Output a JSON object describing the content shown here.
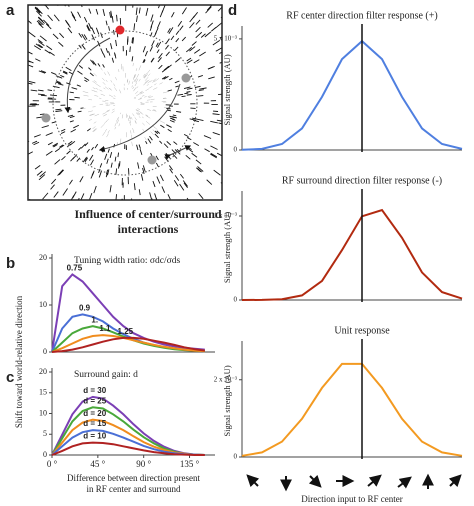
{
  "figure": {
    "panel_a_label": "a",
    "panel_d_label": "d",
    "heading_line1": "Influence of center/surround",
    "heading_line2": "interactions",
    "shared_y_label": "Shift toward world-relative direction"
  },
  "chart_data": [
    {
      "type": "line",
      "panel_label": "b",
      "title": "Tuning width ratio: σdc/σds",
      "x": [
        0,
        10,
        20,
        30,
        40,
        50,
        60,
        70,
        80,
        90,
        100,
        110,
        120,
        130,
        140,
        150
      ],
      "xlim": [
        0,
        160
      ],
      "ylim": [
        0,
        20
      ],
      "yticks": [
        0,
        10,
        20
      ],
      "series": [
        {
          "name": "0.75",
          "color": "#7b3fb5",
          "values": [
            0,
            14,
            16.5,
            15,
            12.5,
            10,
            7.5,
            5.5,
            4,
            3,
            2.2,
            1.6,
            1.2,
            0.9,
            0.7,
            0.5
          ]
        },
        {
          "name": "0.9",
          "color": "#4a6fd6",
          "values": [
            0,
            5,
            7.5,
            8,
            7.5,
            6.5,
            5,
            3.8,
            2.8,
            2,
            1.4,
            1,
            0.7,
            0.5,
            0.4,
            0.3
          ]
        },
        {
          "name": "1.",
          "color": "#49a83a",
          "values": [
            0,
            2,
            4,
            5,
            5.5,
            5,
            4.2,
            3.3,
            2.5,
            1.8,
            1.3,
            0.9,
            0.6,
            0.4,
            0.3,
            0.2
          ]
        },
        {
          "name": "1.1",
          "color": "#f08c1e",
          "values": [
            0,
            0.8,
            1.8,
            2.8,
            3.4,
            3.6,
            3.4,
            3,
            2.5,
            2,
            1.5,
            1.1,
            0.8,
            0.5,
            0.3,
            0.2
          ]
        },
        {
          "name": "1.25",
          "color": "#b02222",
          "values": [
            0,
            0.2,
            0.5,
            1,
            1.6,
            2.2,
            2.7,
            3,
            3,
            2.8,
            2.4,
            2,
            1.5,
            1,
            0.6,
            0.3
          ]
        }
      ]
    },
    {
      "type": "line",
      "panel_label": "c",
      "title": "Surround gain: d",
      "x_label_line1": "Difference between direction present",
      "x_label_line2": "in RF center and surround",
      "x": [
        0,
        10,
        20,
        30,
        40,
        50,
        60,
        70,
        80,
        90,
        100,
        110,
        120,
        130,
        140,
        150
      ],
      "xlim": [
        0,
        160
      ],
      "ylim": [
        0,
        20
      ],
      "yticks": [
        0,
        5,
        10,
        15,
        20
      ],
      "xticks": [
        {
          "value": 0,
          "label": "0 °"
        },
        {
          "value": 45,
          "label": "45 °"
        },
        {
          "value": 90,
          "label": "90 °"
        },
        {
          "value": 135,
          "label": "135 °"
        }
      ],
      "series": [
        {
          "name": "d = 30",
          "color": "#7b3fb5",
          "values": [
            0,
            4.9,
            9.8,
            12.9,
            14,
            13.6,
            11.9,
            9.8,
            7.4,
            5.2,
            3.4,
            2,
            1,
            0.4,
            0.1,
            0
          ]
        },
        {
          "name": "d = 25",
          "color": "#49a83a",
          "values": [
            0,
            4,
            8.1,
            10.6,
            11.5,
            11.2,
            9.8,
            8.1,
            6.1,
            4.3,
            2.8,
            1.6,
            0.8,
            0.3,
            0.1,
            0
          ]
        },
        {
          "name": "d = 20",
          "color": "#f08c1e",
          "values": [
            0,
            3,
            6,
            7.8,
            8.5,
            8.2,
            7.2,
            6,
            4.5,
            3.1,
            2,
            1.2,
            0.6,
            0.3,
            0.1,
            0
          ]
        },
        {
          "name": "d = 15",
          "color": "#4a6fd6",
          "values": [
            0,
            2.1,
            4.2,
            5.5,
            6,
            5.8,
            5.1,
            4.2,
            3.2,
            2.2,
            1.4,
            0.8,
            0.4,
            0.2,
            0.1,
            0
          ]
        },
        {
          "name": "d = 10",
          "color": "#b02222",
          "values": [
            0,
            1,
            2.1,
            2.8,
            3,
            2.9,
            2.6,
            2.1,
            1.6,
            1.1,
            0.7,
            0.4,
            0.2,
            0.1,
            0,
            0
          ]
        }
      ]
    },
    {
      "type": "line",
      "title": "RF center direction filter response (+)",
      "y_label": "Signal strength (AU)",
      "x": [
        -180,
        -150,
        -120,
        -90,
        -60,
        -30,
        0,
        30,
        60,
        90,
        120,
        150
      ],
      "xlim": [
        -180,
        150
      ],
      "ylim": [
        0,
        0.0054
      ],
      "yticks": [
        0,
        {
          "value": 0.005,
          "label": "5 x 10⁻³"
        }
      ],
      "vline": 0,
      "color": "#4f7fe0",
      "values": [
        1e-05,
        5e-05,
        0.00027,
        0.00097,
        0.00239,
        0.00409,
        0.0049,
        0.00409,
        0.00239,
        0.00097,
        0.00027,
        5e-05
      ]
    },
    {
      "type": "line",
      "title": "RF surround direction filter response (-)",
      "y_label": "Signal strength (AU)",
      "x": [
        -180,
        -150,
        -120,
        -90,
        -60,
        -30,
        0,
        30,
        60,
        90,
        120,
        150
      ],
      "xlim": [
        -180,
        150
      ],
      "ylim": [
        0,
        0.00125
      ],
      "yticks": [
        0,
        {
          "value": 0.001,
          "label": "1 x 10⁻³"
        }
      ],
      "vline": 0,
      "color": "#b22a10",
      "values": [
        0,
        1e-06,
        9e-06,
        5.5e-05,
        0.000227,
        0.000594,
        0.000997,
        0.00107,
        0.000741,
        0.000328,
        9.4e-05,
        1.7e-05
      ]
    },
    {
      "type": "line",
      "title": "Unit response",
      "y_label": "Signal strength (AU)",
      "x_label": "Direction input to RF center",
      "x": [
        -180,
        -150,
        -120,
        -90,
        -60,
        -30,
        0,
        30,
        60,
        90,
        120,
        150
      ],
      "xlim": [
        -180,
        150
      ],
      "ylim": [
        0,
        0.0029
      ],
      "yticks": [
        0,
        {
          "value": 0.002,
          "label": "2 x 10⁻³"
        }
      ],
      "vline": 0,
      "color": "#f39a21",
      "values": [
        3e-05,
        0.00012,
        0.0004,
        0.00099,
        0.00179,
        0.00241,
        0.00241,
        0.00179,
        0.00099,
        0.0004,
        0.00012,
        3e-05
      ]
    }
  ]
}
